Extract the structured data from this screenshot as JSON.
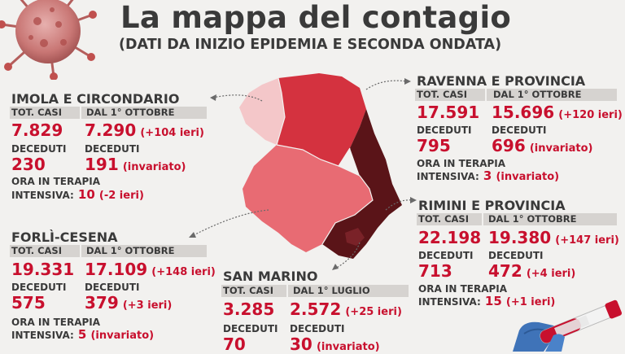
{
  "header": {
    "title": "La mappa del contagio",
    "subtitle": "(DATI DA INIZIO EPIDEMIA E SECONDA ONDATA)"
  },
  "colors": {
    "accent_red": "#c8102e",
    "map_light": "#f4c7c9",
    "map_mid": "#e86b73",
    "map_dark_red": "#d4323f",
    "map_maroon": "#5a1418"
  },
  "regions": {
    "imola": {
      "name": "IMOLA E CIRCONDARIO",
      "hdr_left": "TOT. CASI",
      "hdr_right": "DAL 1° OTTOBRE",
      "tot_casi": "7.829",
      "casi_ottobre": "7.290",
      "casi_note": "(+104 ieri)",
      "deceduti_label": "DECEDUTI",
      "deceduti_tot": "230",
      "deceduti_ottobre": "191",
      "deceduti_note": "(invariato)",
      "ti_label_1": "ORA IN TERAPIA",
      "ti_label_2": "INTENSIVA:",
      "ti_value": "10",
      "ti_note": "(-2 ieri)"
    },
    "forli": {
      "name": "FORLÌ-CESENA",
      "hdr_left": "TOT. CASI",
      "hdr_right": "DAL 1° OTTOBRE",
      "tot_casi": "19.331",
      "casi_ottobre": "17.109",
      "casi_note": "(+148 ieri)",
      "deceduti_label": "DECEDUTI",
      "deceduti_tot": "575",
      "deceduti_ottobre": "379",
      "deceduti_note": "(+3 ieri)",
      "ti_label_1": "ORA IN TERAPIA",
      "ti_label_2": "INTENSIVA:",
      "ti_value": "5",
      "ti_note": "(invariato)"
    },
    "sanmarino": {
      "name": "SAN MARINO",
      "hdr_left": "TOT. CASI",
      "hdr_right": "DAL 1° LUGLIO",
      "tot_casi": "3.285",
      "casi_luglio": "2.572",
      "casi_note": "(+25 ieri)",
      "deceduti_label": "DECEDUTI",
      "deceduti_tot": "70",
      "deceduti_luglio": "30",
      "deceduti_note": "(invariato)"
    },
    "ravenna": {
      "name": "RAVENNA E PROVINCIA",
      "hdr_left": "TOT. CASI",
      "hdr_right": "DAL 1° OTTOBRE",
      "tot_casi": "17.591",
      "casi_ottobre": "15.696",
      "casi_note": "(+120 ieri)",
      "deceduti_label": "DECEDUTI",
      "deceduti_tot": "795",
      "deceduti_ottobre": "696",
      "deceduti_note": "(invariato)",
      "ti_label_1": "ORA IN TERAPIA",
      "ti_label_2": "INTENSIVA:",
      "ti_value": "3",
      "ti_note": "(invariato)"
    },
    "rimini": {
      "name": "RIMINI E PROVINCIA",
      "hdr_left": "TOT. CASI",
      "hdr_right": "DAL 1° OTTOBRE",
      "tot_casi": "22.198",
      "casi_ottobre": "19.380",
      "casi_note": "(+147 ieri)",
      "deceduti_label": "DECEDUTI",
      "deceduti_tot": "713",
      "deceduti_ottobre": "472",
      "deceduti_note": "(+4 ieri)",
      "ti_label_1": "ORA IN TERAPIA",
      "ti_label_2": "INTENSIVA:",
      "ti_value": "15",
      "ti_note": "(+1 ieri)"
    }
  }
}
